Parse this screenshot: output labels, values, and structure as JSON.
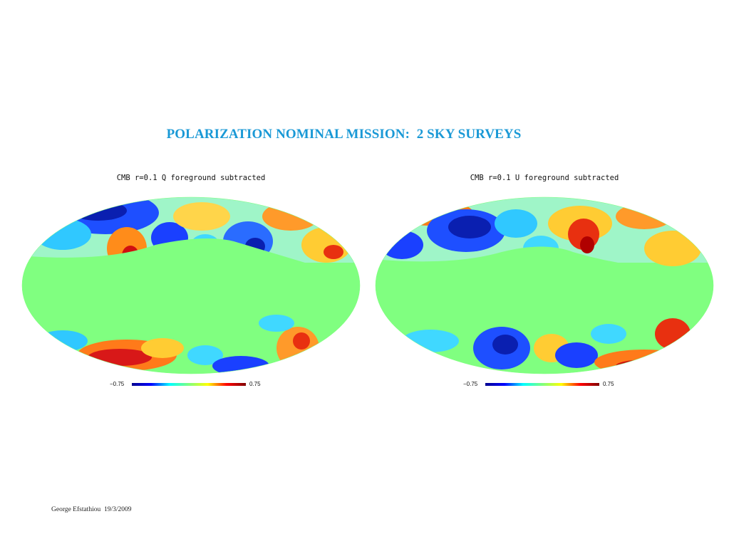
{
  "slide": {
    "title": "POLARIZATION NOMINAL MISSION:  2 SKY SURVEYS",
    "footer": "George Efstathiou  19/3/2009"
  },
  "maps": [
    {
      "caption": "CMB r=0.1 Q foreground subtracted",
      "colorbar": {
        "min": "−0.75",
        "max": "0.75"
      }
    },
    {
      "caption": "CMB r=0.1 U foreground subtracted",
      "colorbar": {
        "min": "−0.75",
        "max": "0.75"
      }
    }
  ],
  "colors": {
    "title": "#1a99d6",
    "masked_band": "#80ff80",
    "colormap": [
      "#00008f",
      "#0000ff",
      "#00ffff",
      "#7fff7f",
      "#ffff00",
      "#ff0000",
      "#800000"
    ]
  }
}
